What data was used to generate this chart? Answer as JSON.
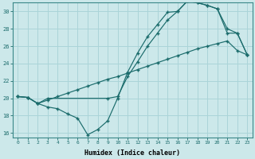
{
  "xlabel": "Humidex (Indice chaleur)",
  "bg_color": "#cce8ea",
  "line_color": "#1a6b6b",
  "grid_color": "#aad4d8",
  "xlim": [
    -0.5,
    23.5
  ],
  "ylim": [
    15.5,
    31.0
  ],
  "xticks": [
    0,
    1,
    2,
    3,
    4,
    5,
    6,
    7,
    8,
    9,
    10,
    11,
    12,
    13,
    14,
    15,
    16,
    17,
    18,
    19,
    20,
    21,
    22,
    23
  ],
  "yticks": [
    16,
    18,
    20,
    22,
    24,
    26,
    28,
    30
  ],
  "line1_x": [
    0,
    1,
    2,
    3,
    4,
    5,
    6,
    7,
    8,
    9,
    10,
    11,
    12,
    13,
    14,
    15,
    16,
    17,
    18,
    19,
    20,
    21,
    22,
    23
  ],
  "line1_y": [
    20.2,
    20.1,
    19.4,
    19.0,
    18.8,
    18.2,
    17.7,
    15.8,
    16.4,
    17.4,
    20.0,
    23.0,
    25.2,
    27.1,
    28.5,
    29.9,
    30.0,
    31.2,
    31.0,
    30.7,
    30.3,
    28.0,
    27.5,
    25.0
  ],
  "line2_x": [
    0,
    1,
    2,
    3,
    4,
    5,
    6,
    7,
    8,
    9,
    10,
    11,
    12,
    13,
    14,
    15,
    16,
    17,
    18,
    19,
    20,
    21,
    22,
    23
  ],
  "line2_y": [
    20.2,
    20.1,
    19.4,
    19.8,
    20.2,
    20.6,
    21.0,
    21.4,
    21.8,
    22.2,
    22.5,
    22.9,
    23.3,
    23.7,
    24.1,
    24.5,
    24.9,
    25.3,
    25.7,
    26.0,
    26.3,
    26.6,
    25.5,
    25.0
  ],
  "line3_x": [
    0,
    1,
    2,
    3,
    9,
    10,
    11,
    12,
    13,
    14,
    15,
    16,
    17,
    18,
    19,
    20,
    21,
    22,
    23
  ],
  "line3_y": [
    20.2,
    20.1,
    19.4,
    20.0,
    20.0,
    20.2,
    22.5,
    24.2,
    26.0,
    27.5,
    29.0,
    30.0,
    31.2,
    31.0,
    30.7,
    30.3,
    27.5,
    27.5,
    25.0
  ]
}
